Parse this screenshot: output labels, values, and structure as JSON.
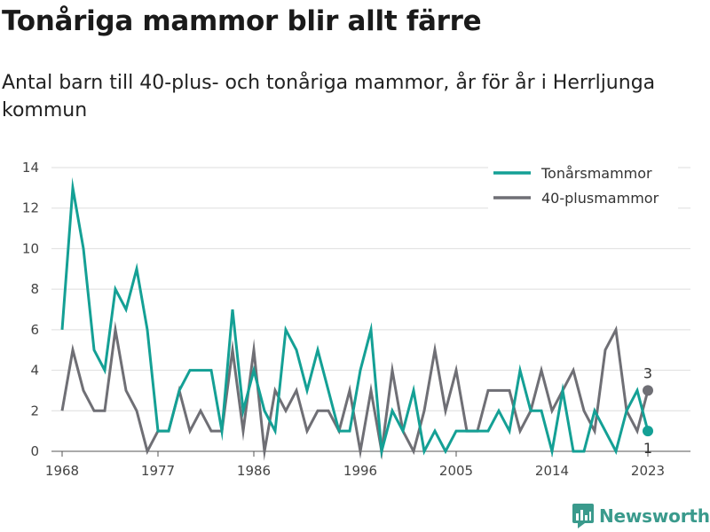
{
  "header": {
    "title": "Tonåriga mammor blir allt färre",
    "subtitle": "Antal barn till 40-plus- och tonåriga mammor, år för år i Herrljunga kommun"
  },
  "brand": {
    "name": "Newsworthy",
    "icon": "newsworthy-logo-icon",
    "color": "#3a9a8c"
  },
  "chart_data": {
    "type": "line",
    "title": "Tonåriga mammor blir allt färre",
    "subtitle": "Antal barn till 40-plus- och tonåriga mammor, år för år i Herrljunga kommun",
    "xlabel": "",
    "ylabel": "",
    "x": [
      1968,
      1969,
      1970,
      1971,
      1972,
      1973,
      1974,
      1975,
      1976,
      1977,
      1978,
      1979,
      1980,
      1981,
      1982,
      1983,
      1984,
      1985,
      1986,
      1987,
      1988,
      1989,
      1990,
      1991,
      1992,
      1993,
      1994,
      1995,
      1996,
      1997,
      1998,
      1999,
      2000,
      2001,
      2002,
      2003,
      2004,
      2005,
      2006,
      2007,
      2008,
      2009,
      2010,
      2011,
      2012,
      2013,
      2014,
      2015,
      2016,
      2017,
      2018,
      2019,
      2020,
      2021,
      2022,
      2023,
      2024
    ],
    "xlim": [
      1967,
      2027
    ],
    "x_ticks": [
      1968,
      1977,
      1986,
      1996,
      2005,
      2014,
      2023
    ],
    "ylim": [
      0,
      14
    ],
    "y_ticks": [
      0,
      2,
      4,
      6,
      8,
      10,
      12,
      14
    ],
    "grid": "horizontal",
    "legend_position": "top-right",
    "series": [
      {
        "name": "Tonårsmammor",
        "color": "#14a095",
        "values": [
          6,
          13,
          10,
          5,
          4,
          8,
          7,
          9,
          6,
          1,
          1,
          3,
          4,
          4,
          4,
          1,
          7,
          2,
          4,
          2,
          1,
          6,
          5,
          3,
          5,
          3,
          1,
          1,
          4,
          6,
          0,
          2,
          1,
          3,
          0,
          1,
          0,
          1,
          1,
          1,
          1,
          2,
          1,
          4,
          2,
          2,
          0,
          3,
          0,
          0,
          2,
          1,
          0,
          2,
          3,
          1,
          null
        ],
        "end_label": "1"
      },
      {
        "name": "40-plusmammor",
        "color": "#6f6f75",
        "values": [
          2,
          5,
          3,
          2,
          2,
          6,
          3,
          2,
          0,
          1,
          1,
          3,
          1,
          2,
          1,
          1,
          5,
          1,
          5,
          0,
          3,
          2,
          3,
          1,
          2,
          2,
          1,
          3,
          0,
          3,
          0,
          4,
          1,
          0,
          2,
          5,
          2,
          4,
          1,
          1,
          3,
          3,
          3,
          1,
          2,
          4,
          2,
          3,
          4,
          2,
          1,
          5,
          6,
          2,
          1,
          3,
          null
        ],
        "end_label": "3"
      }
    ]
  }
}
